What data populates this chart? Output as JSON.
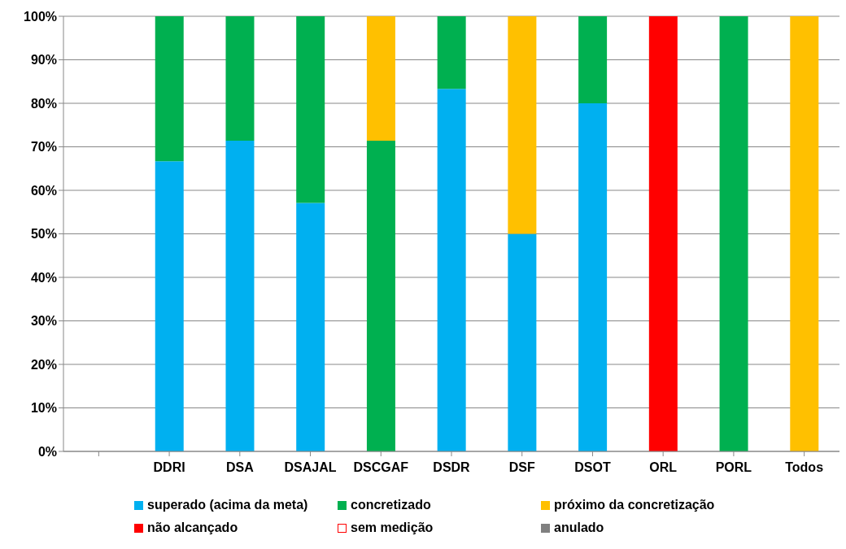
{
  "chart_data": {
    "type": "bar",
    "stacked": true,
    "categories": [
      null,
      "DDRI",
      "DSA",
      "DSAJAL",
      "DSCGAF",
      "DSDR",
      "DSF",
      "DSOT",
      "ORL",
      "PORL",
      "Todos"
    ],
    "series": [
      {
        "name": "superado (acima da meta)",
        "color": "#00b0f0",
        "values": [
          0,
          66.7,
          71.4,
          57.1,
          0,
          83.3,
          50,
          80,
          0,
          0,
          0
        ]
      },
      {
        "name": "concretizado",
        "color": "#00b050",
        "values": [
          0,
          33.3,
          28.6,
          42.9,
          71.4,
          16.7,
          0,
          20,
          0,
          100,
          0
        ]
      },
      {
        "name": "próximo da concretização",
        "color": "#ffc000",
        "values": [
          0,
          0,
          0,
          0,
          28.6,
          0,
          50,
          0,
          0,
          0,
          100
        ]
      },
      {
        "name": "não alcançado",
        "color": "#ff0000",
        "values": [
          0,
          0,
          0,
          0,
          0,
          0,
          0,
          0,
          100,
          0,
          0
        ]
      },
      {
        "name": "sem medição",
        "color": "#ffffff",
        "values": [
          0,
          0,
          0,
          0,
          0,
          0,
          0,
          0,
          0,
          0,
          0
        ]
      },
      {
        "name": "anulado",
        "color": "#808080",
        "values": [
          0,
          0,
          0,
          0,
          0,
          0,
          0,
          0,
          0,
          0,
          0
        ]
      }
    ],
    "ylim": [
      0,
      100
    ],
    "yticks": [
      {
        "value": 0,
        "label": "0%"
      },
      {
        "value": 10,
        "label": "10%"
      },
      {
        "value": 20,
        "label": "20%"
      },
      {
        "value": 30,
        "label": "30%"
      },
      {
        "value": 40,
        "label": "40%"
      },
      {
        "value": 50,
        "label": "50%"
      },
      {
        "value": 60,
        "label": "60%"
      },
      {
        "value": 70,
        "label": "70%"
      },
      {
        "value": 80,
        "label": "80%"
      },
      {
        "value": 90,
        "label": "90%"
      },
      {
        "value": 100,
        "label": "100%"
      }
    ],
    "grid": "y",
    "legend": "bottom"
  }
}
